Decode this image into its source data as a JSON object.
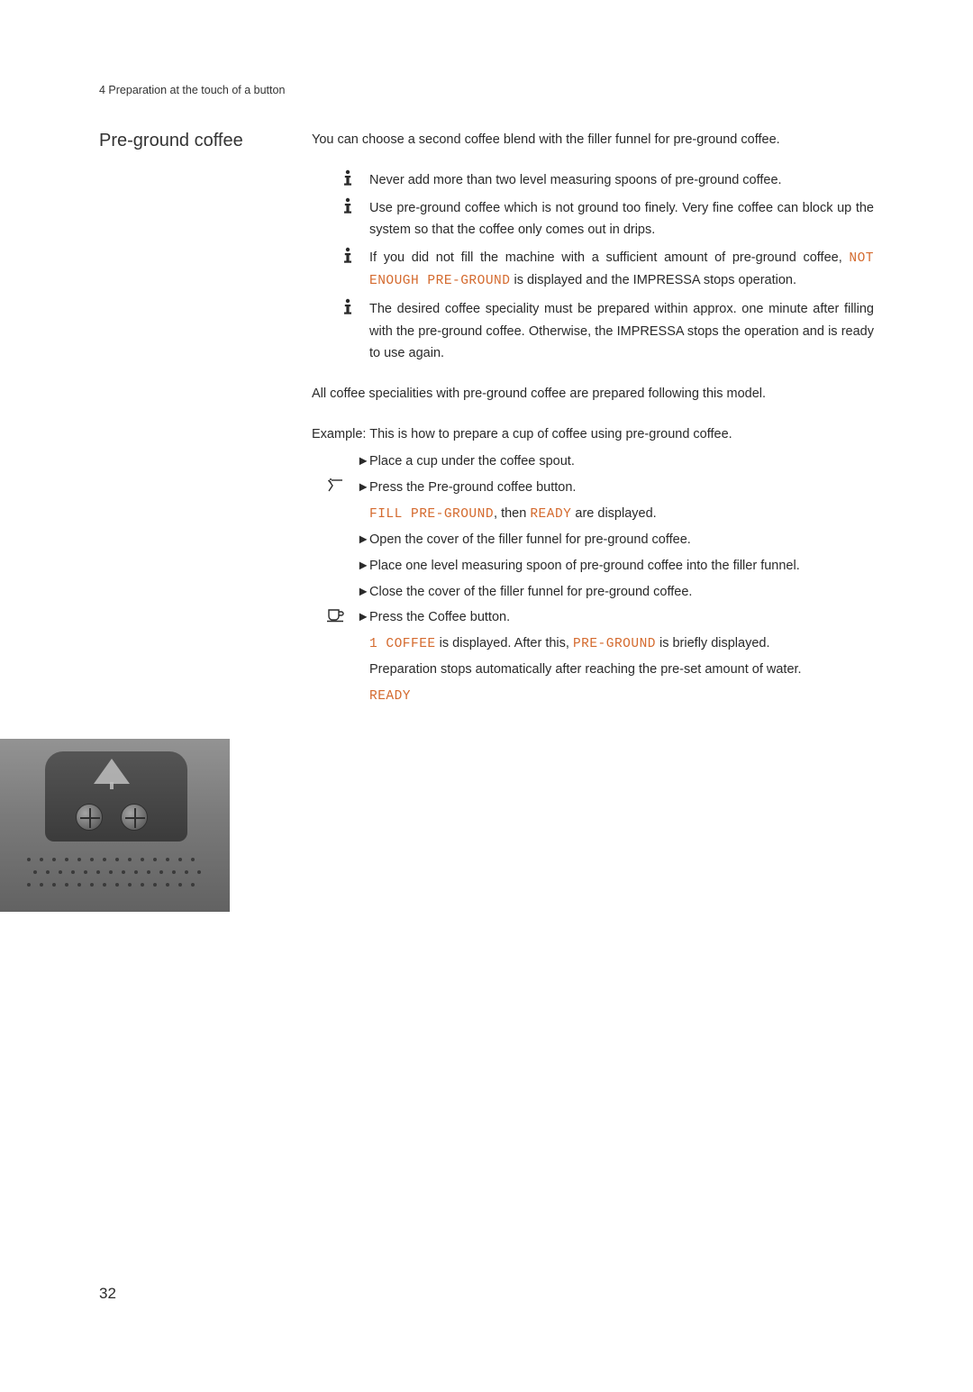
{
  "header": {
    "chapter_line": "4  Preparation at the touch of a button"
  },
  "section": {
    "title": "Pre-ground coffee",
    "intro": "You can choose a second coffee blend with the filler funnel for pre-ground coffee."
  },
  "display_strings": {
    "not_enough": "NOT ENOUGH PRE-GROUND",
    "fill": "FILL PRE-GROUND",
    "ready": "READY",
    "one_coffee": "1 COFFEE",
    "pre_ground": "PRE-GROUND"
  },
  "info_items": {
    "0": "Never add more than two level measuring spoons of pre-ground coffee.",
    "1": "Use pre-ground coffee which is not ground too finely. Very fine coffee can block up the system so that the coffee only comes out in drips.",
    "2_pre": "If you did not fill the machine with a sufficient amount of pre-ground coffee, ",
    "2_post": " is displayed and the IMPRESSA stops operation.",
    "3": "The desired coffee speciality must be prepared within approx. one minute after filling with the pre-ground coffee. Otherwise, the IMPRESSA stops the operation and is ready to use again."
  },
  "mid_para": "All coffee specialities with pre-ground coffee are prepared following this model.",
  "example_para": "Example: This is how to prepare a cup of coffee using pre-ground coffee.",
  "steps": {
    "0": "Place a cup under the coffee spout.",
    "1": "Press the Pre-ground coffee button.",
    "1_sub_mid": ", then ",
    "1_sub_post": " are displayed.",
    "2": "Open the cover of the filler funnel for pre-ground coffee.",
    "3": "Place one level measuring spoon of pre-ground coffee into the filler funnel.",
    "4": "Close the cover of the filler funnel for pre-ground coffee.",
    "5": "Press the Coffee button.",
    "5_sub_mid1": " is displayed. After this, ",
    "5_sub_mid2": " is briefly displayed.",
    "5_sub2": "Preparation stops automatically after reaching the pre-set amount of water."
  },
  "page_number": "32",
  "colors": {
    "display_orange": "#d46a2e",
    "body_text": "#2a2a2a"
  },
  "typography": {
    "body_fontsize_pt": 11,
    "title_fontsize_pt": 15,
    "display_font": "monospace"
  }
}
